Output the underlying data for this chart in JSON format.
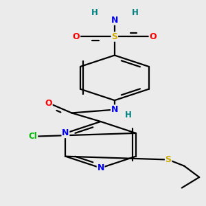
{
  "bg_color": "#ebebeb",
  "atom_colors": {
    "C": "#000000",
    "N": "#0000ff",
    "O": "#ff0000",
    "S": "#ccaa00",
    "Cl": "#00bb00",
    "H": "#008080"
  },
  "bond_lw": 1.6,
  "font_size": 9.0
}
